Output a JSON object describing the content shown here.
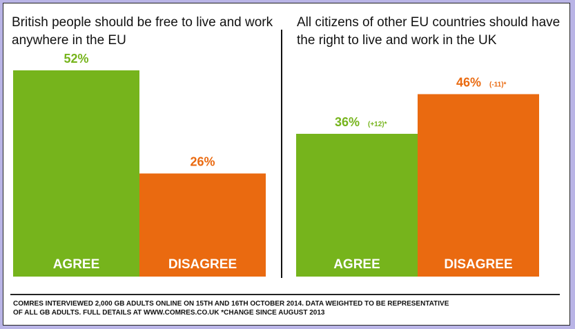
{
  "chart_data": [
    {
      "type": "bar",
      "title": "British people should be free to live and work anywhere in the EU",
      "categories": [
        "AGREE",
        "DISAGREE"
      ],
      "values": [
        52,
        26
      ],
      "value_labels": [
        "52%",
        "26%"
      ],
      "change_labels": [
        "",
        ""
      ],
      "colors": [
        "#76b41c",
        "#ea6a10"
      ],
      "ylim": [
        0,
        60
      ],
      "legend": "none",
      "grid": false
    },
    {
      "type": "bar",
      "title": "All citizens of other EU countries should have the right to live and work in the UK",
      "categories": [
        "AGREE",
        "DISAGREE"
      ],
      "values": [
        36,
        46
      ],
      "value_labels": [
        "36%",
        "46%"
      ],
      "change_labels": [
        "(+12)*",
        "(-11)*"
      ],
      "colors": [
        "#76b41c",
        "#ea6a10"
      ],
      "ylim": [
        0,
        60
      ],
      "legend": "none",
      "grid": false
    }
  ],
  "footnote": {
    "line1": "COMRES INTERVIEWED 2,000 GB ADULTS ONLINE ON 15TH AND 16TH OCTOBER 2014. DATA WEIGHTED TO BE REPRESENTATIVE",
    "line2": "OF ALL GB ADULTS.  FULL DETAILS AT WWW.COMRES.CO.UK  *CHANGE SINCE AUGUST 2013"
  }
}
